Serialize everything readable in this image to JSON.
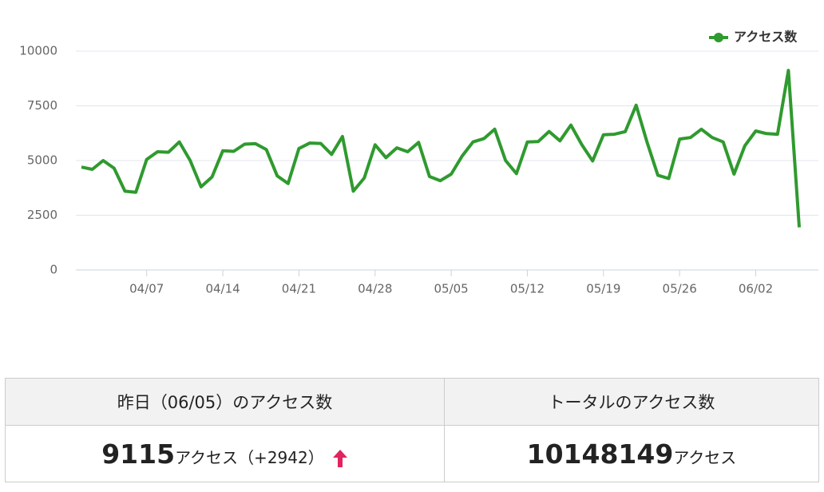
{
  "chart_data": {
    "type": "line",
    "categories": [
      null,
      null,
      null,
      null,
      null,
      null,
      "04/07",
      null,
      null,
      null,
      null,
      null,
      null,
      "04/14",
      null,
      null,
      null,
      null,
      null,
      null,
      "04/21",
      null,
      null,
      null,
      null,
      null,
      null,
      "04/28",
      null,
      null,
      null,
      null,
      null,
      null,
      "05/05",
      null,
      null,
      null,
      null,
      null,
      null,
      "05/12",
      null,
      null,
      null,
      null,
      null,
      null,
      "05/19",
      null,
      null,
      null,
      null,
      null,
      null,
      "05/26",
      null,
      null,
      null,
      null,
      null,
      null,
      "06/02",
      null,
      null,
      null,
      null
    ],
    "series": [
      {
        "name": "アクセス数",
        "color": "#2f9a2f",
        "values": [
          4700,
          4600,
          5000,
          4650,
          3600,
          3550,
          5050,
          5400,
          5380,
          5850,
          5000,
          3800,
          4250,
          5450,
          5420,
          5750,
          5770,
          5500,
          4300,
          3950,
          5550,
          5800,
          5780,
          5280,
          6100,
          3600,
          4200,
          5720,
          5130,
          5580,
          5400,
          5830,
          4270,
          4080,
          4380,
          5200,
          5850,
          6000,
          6430,
          5000,
          4400,
          5850,
          5870,
          6330,
          5900,
          6620,
          5730,
          4980,
          6180,
          6200,
          6320,
          7530,
          5850,
          4330,
          4180,
          5980,
          6050,
          6430,
          6050,
          5850,
          4380,
          5680,
          6350,
          6230,
          6200,
          9115,
          1950
        ]
      }
    ],
    "ylim": [
      0,
      10000
    ],
    "yticks": [
      0,
      2500,
      5000,
      7500,
      10000
    ],
    "grid": true,
    "legend": "top-right"
  },
  "table": {
    "headers": [
      "昨日（06/05）のアクセス数",
      "トータルのアクセス数"
    ],
    "yesterday": {
      "count": "9115",
      "unit": "アクセス",
      "diff": "（+2942）"
    },
    "total": {
      "count": "10148149",
      "unit": "アクセス"
    }
  }
}
